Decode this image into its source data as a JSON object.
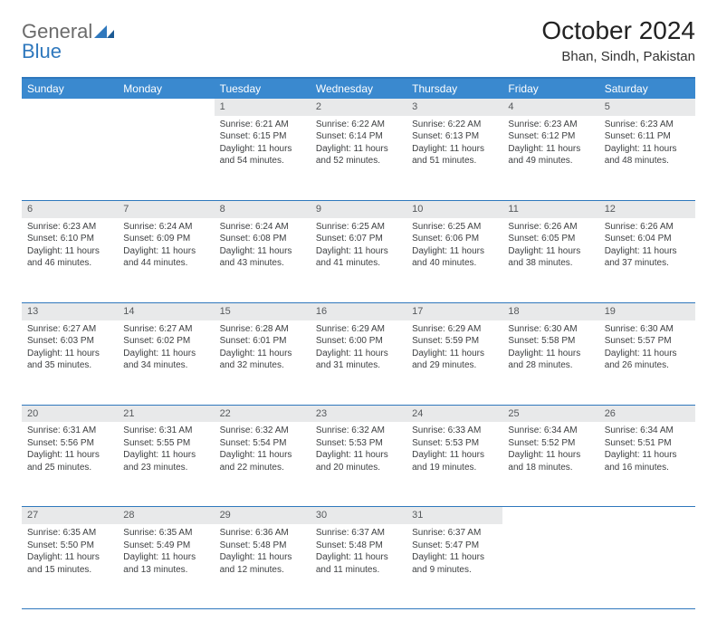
{
  "logo": {
    "word1": "General",
    "word2": "Blue"
  },
  "title": "October 2024",
  "location": "Bhan, Sindh, Pakistan",
  "colors": {
    "header_bg": "#3a89cf",
    "header_text": "#ffffff",
    "rule": "#2f78bd",
    "daynum_bg": "#e8e9ea",
    "text": "#3d3f41"
  },
  "week_headers": [
    "Sunday",
    "Monday",
    "Tuesday",
    "Wednesday",
    "Thursday",
    "Friday",
    "Saturday"
  ],
  "weeks": [
    {
      "nums": [
        "",
        "",
        "1",
        "2",
        "3",
        "4",
        "5"
      ],
      "cells": [
        "",
        "",
        "Sunrise: 6:21 AM\nSunset: 6:15 PM\nDaylight: 11 hours and 54 minutes.",
        "Sunrise: 6:22 AM\nSunset: 6:14 PM\nDaylight: 11 hours and 52 minutes.",
        "Sunrise: 6:22 AM\nSunset: 6:13 PM\nDaylight: 11 hours and 51 minutes.",
        "Sunrise: 6:23 AM\nSunset: 6:12 PM\nDaylight: 11 hours and 49 minutes.",
        "Sunrise: 6:23 AM\nSunset: 6:11 PM\nDaylight: 11 hours and 48 minutes."
      ]
    },
    {
      "nums": [
        "6",
        "7",
        "8",
        "9",
        "10",
        "11",
        "12"
      ],
      "cells": [
        "Sunrise: 6:23 AM\nSunset: 6:10 PM\nDaylight: 11 hours and 46 minutes.",
        "Sunrise: 6:24 AM\nSunset: 6:09 PM\nDaylight: 11 hours and 44 minutes.",
        "Sunrise: 6:24 AM\nSunset: 6:08 PM\nDaylight: 11 hours and 43 minutes.",
        "Sunrise: 6:25 AM\nSunset: 6:07 PM\nDaylight: 11 hours and 41 minutes.",
        "Sunrise: 6:25 AM\nSunset: 6:06 PM\nDaylight: 11 hours and 40 minutes.",
        "Sunrise: 6:26 AM\nSunset: 6:05 PM\nDaylight: 11 hours and 38 minutes.",
        "Sunrise: 6:26 AM\nSunset: 6:04 PM\nDaylight: 11 hours and 37 minutes."
      ]
    },
    {
      "nums": [
        "13",
        "14",
        "15",
        "16",
        "17",
        "18",
        "19"
      ],
      "cells": [
        "Sunrise: 6:27 AM\nSunset: 6:03 PM\nDaylight: 11 hours and 35 minutes.",
        "Sunrise: 6:27 AM\nSunset: 6:02 PM\nDaylight: 11 hours and 34 minutes.",
        "Sunrise: 6:28 AM\nSunset: 6:01 PM\nDaylight: 11 hours and 32 minutes.",
        "Sunrise: 6:29 AM\nSunset: 6:00 PM\nDaylight: 11 hours and 31 minutes.",
        "Sunrise: 6:29 AM\nSunset: 5:59 PM\nDaylight: 11 hours and 29 minutes.",
        "Sunrise: 6:30 AM\nSunset: 5:58 PM\nDaylight: 11 hours and 28 minutes.",
        "Sunrise: 6:30 AM\nSunset: 5:57 PM\nDaylight: 11 hours and 26 minutes."
      ]
    },
    {
      "nums": [
        "20",
        "21",
        "22",
        "23",
        "24",
        "25",
        "26"
      ],
      "cells": [
        "Sunrise: 6:31 AM\nSunset: 5:56 PM\nDaylight: 11 hours and 25 minutes.",
        "Sunrise: 6:31 AM\nSunset: 5:55 PM\nDaylight: 11 hours and 23 minutes.",
        "Sunrise: 6:32 AM\nSunset: 5:54 PM\nDaylight: 11 hours and 22 minutes.",
        "Sunrise: 6:32 AM\nSunset: 5:53 PM\nDaylight: 11 hours and 20 minutes.",
        "Sunrise: 6:33 AM\nSunset: 5:53 PM\nDaylight: 11 hours and 19 minutes.",
        "Sunrise: 6:34 AM\nSunset: 5:52 PM\nDaylight: 11 hours and 18 minutes.",
        "Sunrise: 6:34 AM\nSunset: 5:51 PM\nDaylight: 11 hours and 16 minutes."
      ]
    },
    {
      "nums": [
        "27",
        "28",
        "29",
        "30",
        "31",
        "",
        ""
      ],
      "cells": [
        "Sunrise: 6:35 AM\nSunset: 5:50 PM\nDaylight: 11 hours and 15 minutes.",
        "Sunrise: 6:35 AM\nSunset: 5:49 PM\nDaylight: 11 hours and 13 minutes.",
        "Sunrise: 6:36 AM\nSunset: 5:48 PM\nDaylight: 11 hours and 12 minutes.",
        "Sunrise: 6:37 AM\nSunset: 5:48 PM\nDaylight: 11 hours and 11 minutes.",
        "Sunrise: 6:37 AM\nSunset: 5:47 PM\nDaylight: 11 hours and 9 minutes.",
        "",
        ""
      ]
    }
  ]
}
